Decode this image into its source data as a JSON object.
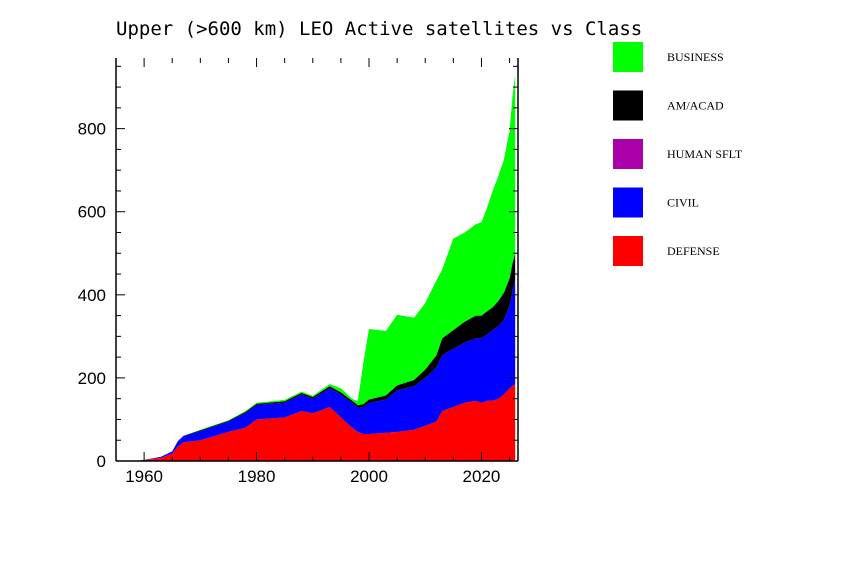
{
  "chart_data": {
    "type": "area",
    "stacked": true,
    "title": "Upper (>600 km) LEO Active satellites vs Class",
    "xlabel": "",
    "ylabel": "",
    "xlim": [
      1955,
      2026.5
    ],
    "ylim": [
      0,
      970
    ],
    "x_ticks": [
      1960,
      1980,
      2000,
      2020
    ],
    "y_ticks": [
      0,
      200,
      400,
      600,
      800
    ],
    "grid": false,
    "legend_position": "right",
    "x": [
      1957,
      1959,
      1961,
      1963,
      1965,
      1966,
      1967,
      1970,
      1975,
      1978,
      1980,
      1985,
      1988,
      1990,
      1993,
      1995,
      1997,
      1998,
      1999,
      2000,
      2003,
      2005,
      2008,
      2010,
      2012,
      2013,
      2015,
      2017,
      2019,
      2020,
      2021,
      2022,
      2023,
      2024,
      2025,
      2025.5,
      2026
    ],
    "series": [
      {
        "name": "DEFENSE",
        "color": "#ff0000",
        "values": [
          0,
          1,
          4,
          8,
          18,
          35,
          45,
          50,
          70,
          80,
          100,
          105,
          120,
          115,
          130,
          105,
          80,
          70,
          65,
          65,
          68,
          70,
          75,
          85,
          95,
          120,
          130,
          140,
          145,
          140,
          145,
          145,
          150,
          160,
          175,
          180,
          185
        ]
      },
      {
        "name": "CIVIL",
        "color": "#0000ff",
        "values": [
          0,
          0,
          1,
          2,
          5,
          12,
          15,
          22,
          25,
          35,
          35,
          35,
          40,
          35,
          45,
          55,
          60,
          58,
          65,
          75,
          80,
          100,
          105,
          115,
          130,
          135,
          140,
          145,
          150,
          155,
          160,
          170,
          175,
          180,
          200,
          230,
          250
        ]
      },
      {
        "name": "HUMAN SFLT",
        "color": "#aa00aa",
        "values": [
          0,
          0,
          0,
          0,
          0,
          0,
          0,
          0,
          0,
          0,
          0,
          0,
          0,
          0,
          0,
          0,
          0,
          0,
          0,
          0,
          0,
          0,
          0,
          0,
          0,
          0,
          0,
          0,
          0,
          0,
          0,
          0,
          0,
          0,
          0,
          0,
          0
        ]
      },
      {
        "name": "AM/ACAD",
        "color": "#000000",
        "values": [
          0,
          0,
          0,
          0,
          0,
          1,
          1,
          2,
          2,
          3,
          3,
          4,
          4,
          4,
          5,
          5,
          5,
          6,
          7,
          8,
          10,
          12,
          15,
          20,
          30,
          40,
          45,
          50,
          55,
          55,
          55,
          55,
          60,
          65,
          65,
          65,
          65
        ]
      },
      {
        "name": "BUSINESS",
        "color": "#00ff00",
        "values": [
          0,
          0,
          0,
          0,
          0,
          0,
          0,
          1,
          1,
          2,
          2,
          3,
          3,
          3,
          5,
          10,
          5,
          10,
          100,
          170,
          155,
          170,
          150,
          160,
          180,
          165,
          220,
          215,
          220,
          225,
          250,
          280,
          300,
          320,
          355,
          400,
          430
        ]
      }
    ]
  }
}
